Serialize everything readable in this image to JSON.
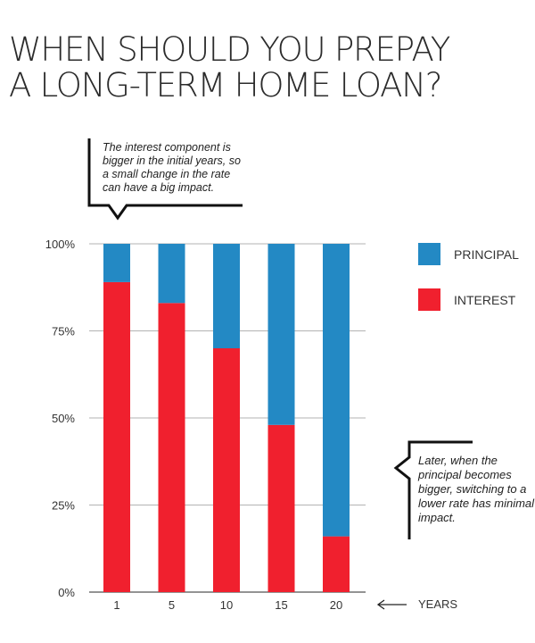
{
  "title_lines": [
    "WHEN SHOULD YOU PREPAY",
    "A LONG-TERM HOME LOAN?"
  ],
  "callouts": {
    "top": "The interest component is bigger in the initial years, so a small change in the rate can have a big impact.",
    "bottom": "Later, when the principal becomes bigger, switching to a lower rate has minimal impact."
  },
  "legend": [
    {
      "label": "PRINCIPAL",
      "color": "#2389c4"
    },
    {
      "label": "INTEREST",
      "color": "#f0202e"
    }
  ],
  "x_axis_label": "YEARS",
  "arrow_icon": "long-left-arrow-icon",
  "chart_data": {
    "type": "bar",
    "stacked": true,
    "categories": [
      "1",
      "5",
      "10",
      "15",
      "20"
    ],
    "series": [
      {
        "name": "INTEREST",
        "color": "#f0202e",
        "values": [
          89,
          83,
          70,
          48,
          16
        ]
      },
      {
        "name": "PRINCIPAL",
        "color": "#2389c4",
        "values": [
          11,
          17,
          30,
          52,
          84
        ]
      }
    ],
    "ylim": [
      0,
      100
    ],
    "yticks": [
      "0%",
      "25%",
      "50%",
      "75%",
      "100%"
    ],
    "xlabel": "YEARS",
    "grid": true,
    "legend_position": "right"
  }
}
